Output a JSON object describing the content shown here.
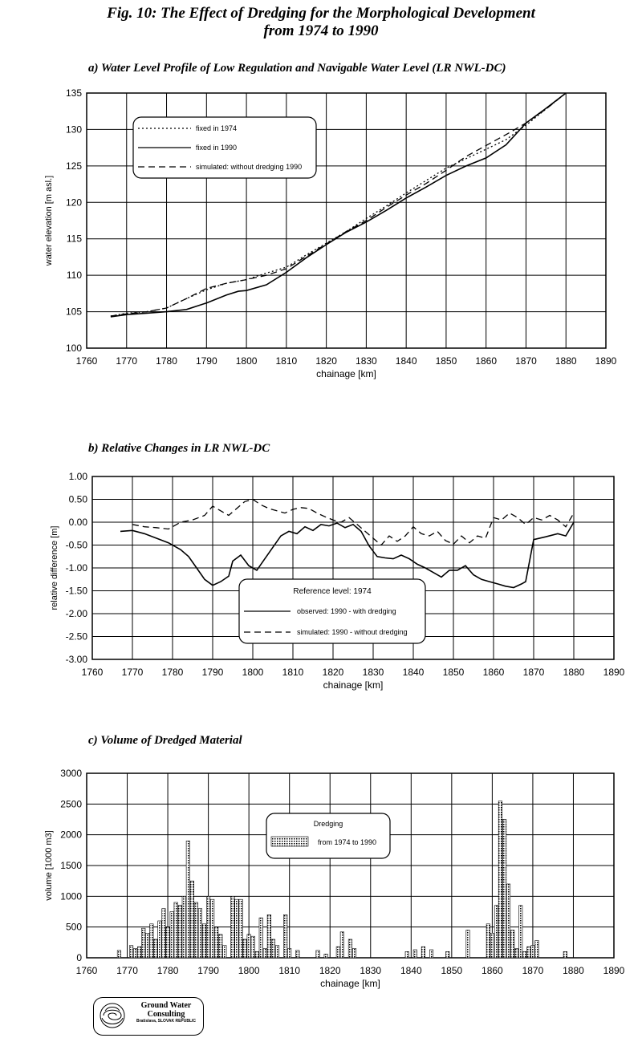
{
  "figure": {
    "title_line1": "Fig. 10: The Effect of Dredging for the Morphological Development",
    "title_line2": "from 1974 to 1990"
  },
  "logo": {
    "line1": "Ground Water",
    "line2": "Consulting",
    "line3": "Bratislava, SLOVAK REPUBLIC"
  },
  "chart_data": [
    {
      "id": "a",
      "type": "line",
      "title": "a)  Water Level Profile of Low Regulation and Navigable Water Level (LR NWL-DC)",
      "xlabel": "chainage [km]",
      "ylabel": "water elevation [m asl.]",
      "xlim": [
        1760,
        1890
      ],
      "ylim": [
        100,
        135
      ],
      "xticks": [
        1760,
        1770,
        1780,
        1790,
        1800,
        1810,
        1820,
        1830,
        1840,
        1850,
        1860,
        1870,
        1880,
        1890
      ],
      "yticks": [
        100,
        105,
        110,
        115,
        120,
        125,
        130,
        135
      ],
      "ytick_labels": [
        "100",
        "105",
        "110",
        "115",
        "120",
        "125",
        "130",
        "135"
      ],
      "grid": true,
      "legend_position": "top-left",
      "series": [
        {
          "name": "fixed in 1974",
          "style": "dotted",
          "x": [
            1766,
            1770,
            1775,
            1780,
            1785,
            1790,
            1795,
            1800,
            1805,
            1810,
            1815,
            1820,
            1825,
            1830,
            1835,
            1840,
            1845,
            1850,
            1855,
            1860,
            1865,
            1870,
            1875,
            1880
          ],
          "y": [
            104.4,
            104.8,
            105.0,
            105.5,
            106.8,
            108.0,
            108.9,
            109.4,
            110.3,
            111.1,
            112.8,
            114.4,
            116.0,
            117.8,
            119.5,
            121.3,
            123.0,
            124.7,
            126.0,
            127.3,
            128.6,
            130.6,
            132.8,
            135.0
          ]
        },
        {
          "name": "fixed in 1990",
          "style": "solid",
          "x": [
            1766,
            1770,
            1775,
            1780,
            1785,
            1790,
            1795,
            1798,
            1800,
            1805,
            1810,
            1815,
            1820,
            1825,
            1830,
            1835,
            1840,
            1845,
            1850,
            1855,
            1860,
            1865,
            1870,
            1875,
            1880
          ],
          "y": [
            104.3,
            104.6,
            104.8,
            105.0,
            105.3,
            106.2,
            107.3,
            107.8,
            107.9,
            108.7,
            110.4,
            112.4,
            114.2,
            115.9,
            117.3,
            118.9,
            120.6,
            122.1,
            123.7,
            125.0,
            126.1,
            127.9,
            130.9,
            132.9,
            135.0
          ]
        },
        {
          "name": "simulated: without dredging 1990",
          "style": "dashed",
          "x": [
            1766,
            1770,
            1775,
            1780,
            1785,
            1790,
            1795,
            1800,
            1805,
            1810,
            1815,
            1820,
            1825,
            1830,
            1835,
            1840,
            1845,
            1850,
            1855,
            1860,
            1865,
            1870,
            1875,
            1880
          ],
          "y": [
            104.4,
            104.7,
            105.0,
            105.5,
            106.8,
            108.2,
            108.9,
            109.4,
            110.0,
            110.9,
            112.6,
            114.3,
            116.0,
            117.5,
            119.3,
            121.0,
            122.6,
            124.4,
            126.3,
            127.8,
            129.3,
            130.9,
            132.8,
            135.0
          ]
        }
      ]
    },
    {
      "id": "b",
      "type": "line",
      "title": "b)  Relative Changes in LR NWL-DC",
      "xlabel": "chainage [km]",
      "ylabel": "relative difference [m]",
      "xlim": [
        1760,
        1890
      ],
      "ylim": [
        -3.0,
        1.0
      ],
      "xticks": [
        1760,
        1770,
        1780,
        1790,
        1800,
        1810,
        1820,
        1830,
        1840,
        1850,
        1860,
        1870,
        1880,
        1890
      ],
      "yticks": [
        -3.0,
        -2.5,
        -2.0,
        -1.5,
        -1.0,
        -0.5,
        0.0,
        0.5,
        1.0
      ],
      "ytick_labels": [
        "-3.00",
        "-2.50",
        "-2.00",
        "-1.50",
        "-1.00",
        "-0.50",
        "0.00",
        "0.50",
        "1.00"
      ],
      "grid": true,
      "legend_title": "Reference level: 1974",
      "legend_position": "bottom-center",
      "series": [
        {
          "name": "observed:  1990 - with dredging",
          "style": "solid",
          "x": [
            1767,
            1770,
            1773,
            1776,
            1779,
            1782,
            1784,
            1786,
            1788,
            1790,
            1792,
            1794,
            1795,
            1797,
            1799,
            1801,
            1803,
            1805,
            1807,
            1809,
            1811,
            1813,
            1815,
            1817,
            1819,
            1821,
            1823,
            1825,
            1827,
            1829,
            1831,
            1833,
            1835,
            1837,
            1839,
            1841,
            1843,
            1845,
            1847,
            1849,
            1851,
            1853,
            1855,
            1857,
            1859,
            1861,
            1863,
            1865,
            1867,
            1868,
            1870,
            1873,
            1876,
            1878,
            1880
          ],
          "y": [
            -0.2,
            -0.18,
            -0.25,
            -0.35,
            -0.45,
            -0.6,
            -0.75,
            -1.0,
            -1.25,
            -1.38,
            -1.3,
            -1.18,
            -0.85,
            -0.72,
            -0.95,
            -1.05,
            -0.8,
            -0.55,
            -0.3,
            -0.2,
            -0.25,
            -0.1,
            -0.18,
            -0.05,
            -0.08,
            -0.02,
            -0.12,
            -0.05,
            -0.2,
            -0.52,
            -0.75,
            -0.78,
            -0.8,
            -0.72,
            -0.8,
            -0.92,
            -1.0,
            -1.1,
            -1.2,
            -1.05,
            -1.05,
            -0.95,
            -1.15,
            -1.25,
            -1.3,
            -1.35,
            -1.4,
            -1.43,
            -1.35,
            -1.3,
            -0.38,
            -0.32,
            -0.25,
            -0.3,
            0.0
          ]
        },
        {
          "name": "simulated: 1990 - without dredging",
          "style": "dashed",
          "x": [
            1770,
            1773,
            1776,
            1779,
            1782,
            1785,
            1788,
            1790,
            1792,
            1794,
            1796,
            1798,
            1800,
            1802,
            1804,
            1806,
            1808,
            1810,
            1812,
            1814,
            1816,
            1818,
            1820,
            1822,
            1824,
            1826,
            1828,
            1830,
            1832,
            1834,
            1836,
            1838,
            1840,
            1842,
            1844,
            1846,
            1848,
            1850,
            1852,
            1854,
            1856,
            1858,
            1860,
            1862,
            1864,
            1866,
            1868,
            1870,
            1872,
            1874,
            1876,
            1878,
            1880
          ],
          "y": [
            -0.05,
            -0.1,
            -0.12,
            -0.15,
            0.0,
            0.05,
            0.15,
            0.35,
            0.25,
            0.15,
            0.3,
            0.45,
            0.5,
            0.38,
            0.3,
            0.25,
            0.2,
            0.28,
            0.32,
            0.3,
            0.2,
            0.12,
            0.05,
            0.0,
            0.1,
            -0.05,
            -0.2,
            -0.35,
            -0.5,
            -0.3,
            -0.42,
            -0.3,
            -0.1,
            -0.25,
            -0.3,
            -0.2,
            -0.4,
            -0.48,
            -0.3,
            -0.45,
            -0.3,
            -0.35,
            0.1,
            0.05,
            0.2,
            0.1,
            -0.05,
            0.1,
            0.05,
            0.15,
            0.05,
            -0.1,
            0.2
          ]
        }
      ]
    },
    {
      "id": "c",
      "type": "bar",
      "title": "c)  Volume of Dredged Material",
      "xlabel": "chainage [km]",
      "ylabel": "volume [1000 m3]",
      "xlim": [
        1760,
        1890
      ],
      "ylim": [
        0,
        3000
      ],
      "xticks": [
        1760,
        1770,
        1780,
        1790,
        1800,
        1810,
        1820,
        1830,
        1840,
        1850,
        1860,
        1870,
        1880,
        1890
      ],
      "yticks": [
        0,
        500,
        1000,
        1500,
        2000,
        2500,
        3000
      ],
      "ytick_labels": [
        "0",
        "500",
        "1000",
        "1500",
        "2000",
        "2500",
        "3000"
      ],
      "grid": true,
      "legend_title": "Dredging",
      "legend_position": "top-center",
      "series": [
        {
          "name": "from 1974 to 1990"
        }
      ],
      "bars": [
        [
          1768,
          120
        ],
        [
          1771,
          200
        ],
        [
          1772,
          150
        ],
        [
          1773,
          180
        ],
        [
          1774,
          480
        ],
        [
          1775,
          400
        ],
        [
          1776,
          550
        ],
        [
          1777,
          300
        ],
        [
          1778,
          600
        ],
        [
          1779,
          800
        ],
        [
          1780,
          500
        ],
        [
          1781,
          750
        ],
        [
          1782,
          900
        ],
        [
          1783,
          850
        ],
        [
          1784,
          1000
        ],
        [
          1785,
          1900
        ],
        [
          1786,
          1250
        ],
        [
          1787,
          900
        ],
        [
          1788,
          800
        ],
        [
          1789,
          550
        ],
        [
          1790,
          1000
        ],
        [
          1791,
          950
        ],
        [
          1792,
          500
        ],
        [
          1793,
          380
        ],
        [
          1794,
          200
        ],
        [
          1796,
          1000
        ],
        [
          1797,
          950
        ],
        [
          1798,
          950
        ],
        [
          1799,
          300
        ],
        [
          1800,
          380
        ],
        [
          1801,
          350
        ],
        [
          1802,
          100
        ],
        [
          1803,
          650
        ],
        [
          1804,
          150
        ],
        [
          1805,
          700
        ],
        [
          1806,
          300
        ],
        [
          1807,
          200
        ],
        [
          1809,
          700
        ],
        [
          1810,
          150
        ],
        [
          1812,
          120
        ],
        [
          1817,
          120
        ],
        [
          1819,
          60
        ],
        [
          1822,
          180
        ],
        [
          1823,
          420
        ],
        [
          1825,
          300
        ],
        [
          1826,
          150
        ],
        [
          1839,
          100
        ],
        [
          1841,
          130
        ],
        [
          1843,
          180
        ],
        [
          1845,
          130
        ],
        [
          1849,
          100
        ],
        [
          1854,
          450
        ],
        [
          1859,
          550
        ],
        [
          1860,
          400
        ],
        [
          1861,
          850
        ],
        [
          1862,
          2550
        ],
        [
          1863,
          2250
        ],
        [
          1864,
          1200
        ],
        [
          1865,
          450
        ],
        [
          1866,
          150
        ],
        [
          1867,
          850
        ],
        [
          1868,
          100
        ],
        [
          1869,
          180
        ],
        [
          1870,
          200
        ],
        [
          1871,
          280
        ],
        [
          1878,
          100
        ]
      ]
    }
  ]
}
